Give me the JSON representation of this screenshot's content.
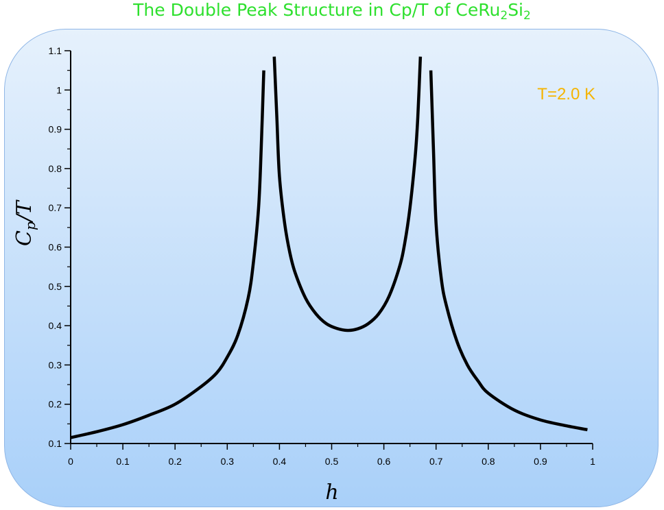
{
  "title": {
    "prefix": "The Double Peak Structure in Cp/T of CeRu",
    "sub1": "2",
    "mid": "Si",
    "sub2": "2"
  },
  "colors": {
    "title": "#2ee02e",
    "annotation": "#f5b400",
    "curve": "#000000"
  },
  "annotation": {
    "text": "T=2.0 K"
  },
  "chart_data": {
    "type": "line",
    "title": "The Double Peak Structure in Cp/T of CeRu2Si2",
    "xlabel": "h",
    "ylabel": "Cp/T",
    "xlim": [
      0,
      1
    ],
    "ylim": [
      0.1,
      1.1
    ],
    "x_ticks": [
      "0",
      "0.1",
      "0.2",
      "0.3",
      "0.4",
      "0.5",
      "0.6",
      "0.7",
      "0.8",
      "0.9",
      "1"
    ],
    "y_ticks": [
      "0.1",
      "0.2",
      "0.3",
      "0.4",
      "0.5",
      "0.6",
      "0.7",
      "0.8",
      "0.9",
      "1",
      "1.1"
    ],
    "grid": false,
    "series": [
      {
        "x": [
          0.0,
          0.05,
          0.1,
          0.15,
          0.2,
          0.25,
          0.28,
          0.3,
          0.32,
          0.34,
          0.35,
          0.36,
          0.365,
          0.37
        ],
        "y": [
          0.115,
          0.13,
          0.148,
          0.172,
          0.2,
          0.245,
          0.28,
          0.32,
          0.375,
          0.47,
          0.56,
          0.7,
          0.85,
          1.05
        ]
      },
      {
        "x": [
          0.39,
          0.395,
          0.4,
          0.41,
          0.42,
          0.43,
          0.45,
          0.47,
          0.49,
          0.51,
          0.53,
          0.55,
          0.57,
          0.59,
          0.61,
          0.63,
          0.64,
          0.65,
          0.66,
          0.665,
          0.67
        ],
        "y": [
          1.085,
          0.93,
          0.78,
          0.66,
          0.585,
          0.535,
          0.47,
          0.43,
          0.405,
          0.393,
          0.388,
          0.392,
          0.405,
          0.43,
          0.475,
          0.55,
          0.61,
          0.7,
          0.83,
          0.93,
          1.085
        ]
      },
      {
        "x": [
          0.69,
          0.695,
          0.7,
          0.71,
          0.72,
          0.74,
          0.76,
          0.78,
          0.8,
          0.85,
          0.9,
          0.95,
          0.99
        ],
        "y": [
          1.05,
          0.85,
          0.66,
          0.52,
          0.45,
          0.36,
          0.3,
          0.26,
          0.228,
          0.185,
          0.16,
          0.145,
          0.135
        ]
      }
    ]
  }
}
